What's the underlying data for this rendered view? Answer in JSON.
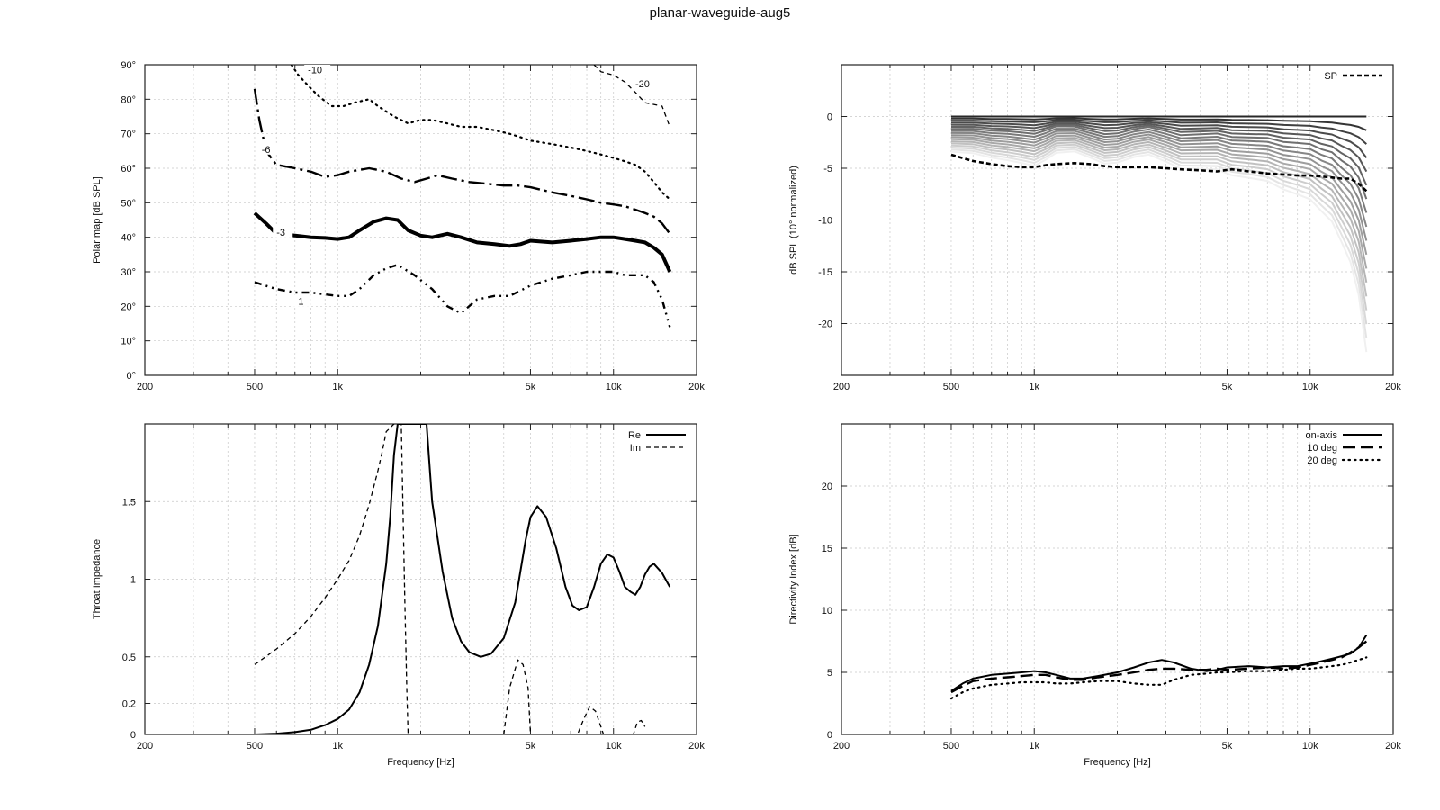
{
  "figure_title": "planar-waveguide-aug5",
  "freq_ticks": [
    {
      "v": 200,
      "label": "200"
    },
    {
      "v": 500,
      "label": "500"
    },
    {
      "v": 1000,
      "label": "1k"
    },
    {
      "v": 5000,
      "label": "5k"
    },
    {
      "v": 10000,
      "label": "10k"
    },
    {
      "v": 20000,
      "label": "20k"
    }
  ],
  "chart_data": [
    {
      "id": "polar",
      "type": "line",
      "subtype": "contour",
      "xscale": "log",
      "xlim": [
        200,
        20000
      ],
      "ylim": [
        0,
        90
      ],
      "xlabel": "",
      "ylabel": "Polar map [dB SPL]",
      "grid": true,
      "yticks": [
        {
          "v": 0,
          "label": "0°"
        },
        {
          "v": 10,
          "label": "10°"
        },
        {
          "v": 20,
          "label": "20°"
        },
        {
          "v": 30,
          "label": "30°"
        },
        {
          "v": 40,
          "label": "40°"
        },
        {
          "v": 50,
          "label": "50°"
        },
        {
          "v": 60,
          "label": "60°"
        },
        {
          "v": 70,
          "label": "70°"
        },
        {
          "v": 80,
          "label": "80°"
        },
        {
          "v": 90,
          "label": "90°"
        }
      ],
      "series": [
        {
          "name": "-1",
          "style": "dashdot-sparse",
          "label_at": [
            700,
            21
          ],
          "x": [
            500,
            600,
            700,
            800,
            1000,
            1100,
            1200,
            1350,
            1500,
            1650,
            1900,
            2200,
            2500,
            2800,
            3200,
            3700,
            4200,
            5000,
            6000,
            7000,
            8000,
            9000,
            10000,
            11000,
            12000,
            13000,
            14000,
            15000,
            16000
          ],
          "y": [
            27,
            25,
            24,
            24,
            23,
            23,
            25,
            29,
            31,
            32,
            29,
            25,
            20,
            18,
            22,
            23,
            23,
            26,
            28,
            29,
            30,
            30,
            30,
            29,
            29,
            29,
            27,
            22,
            14
          ]
        },
        {
          "name": "-3",
          "style": "solid-bold",
          "label_at": [
            600,
            41
          ],
          "x": [
            500,
            550,
            600,
            700,
            800,
            900,
            1000,
            1100,
            1200,
            1350,
            1500,
            1650,
            1800,
            2000,
            2200,
            2500,
            2800,
            3200,
            3700,
            4200,
            4600,
            5000,
            6000,
            7000,
            8000,
            9000,
            10000,
            11000,
            12000,
            13000,
            14000,
            15000,
            16000
          ],
          "y": [
            47,
            44,
            41,
            40.5,
            40,
            39.8,
            39.5,
            40,
            42,
            44.5,
            45.5,
            45,
            42,
            40.5,
            40,
            41,
            40,
            38.5,
            38,
            37.5,
            38,
            39,
            38.5,
            39,
            39.5,
            40,
            40,
            39.5,
            39,
            38.5,
            37,
            35,
            30
          ]
        },
        {
          "name": "-6",
          "style": "dashdot-long",
          "label_at": [
            530,
            65
          ],
          "x": [
            500,
            520,
            550,
            600,
            700,
            800,
            900,
            1000,
            1100,
            1300,
            1500,
            1700,
            1900,
            2100,
            2300,
            2600,
            3000,
            3500,
            4000,
            4500,
            5000,
            6000,
            7000,
            8000,
            9000,
            10000,
            11000,
            12000,
            13000,
            14000,
            15000,
            16000
          ],
          "y": [
            83,
            74,
            65,
            61,
            60,
            59,
            57.5,
            58,
            59,
            60,
            59,
            57,
            56,
            57,
            58,
            57,
            56,
            55.5,
            55,
            55,
            54.5,
            53,
            52,
            51,
            50,
            49.5,
            49,
            48,
            47,
            46,
            44,
            41
          ]
        },
        {
          "name": "-10",
          "style": "dotted",
          "label_at": [
            780,
            88
          ],
          "x": [
            680,
            720,
            780,
            850,
            950,
            1050,
            1150,
            1300,
            1400,
            1600,
            1800,
            2000,
            2200,
            2500,
            2800,
            3200,
            3700,
            4200,
            4600,
            5000,
            6000,
            7000,
            8000,
            9000,
            10000,
            11000,
            12000,
            13000,
            14000,
            15000,
            16000
          ],
          "y": [
            90,
            87,
            84,
            81,
            78,
            78,
            79,
            80,
            78,
            75,
            73,
            74,
            74,
            73,
            72,
            72,
            71,
            70,
            69,
            68,
            67,
            66,
            65,
            64,
            63,
            62,
            61,
            59,
            56,
            53,
            51
          ]
        },
        {
          "name": "-20",
          "style": "dashed",
          "label_at": [
            12000,
            84
          ],
          "x": [
            8500,
            9000,
            10000,
            11000,
            12000,
            13000,
            14000,
            15000,
            16000
          ],
          "y": [
            90,
            88,
            87,
            85,
            82,
            79,
            78.5,
            78,
            72
          ]
        }
      ]
    },
    {
      "id": "normalized",
      "type": "line",
      "xscale": "log",
      "xlim": [
        200,
        20000
      ],
      "ylim": [
        -25,
        5
      ],
      "xlabel": "",
      "ylabel": "dB SPL (10° normalized)",
      "grid": true,
      "yticks": [
        {
          "v": 0,
          "label": "0"
        },
        {
          "v": -5,
          "label": "-5"
        },
        {
          "v": -10,
          "label": "-10"
        },
        {
          "v": -15,
          "label": "-15"
        },
        {
          "v": -20,
          "label": "-20"
        }
      ],
      "legend": {
        "entries": [
          "SP"
        ],
        "position": "top-right"
      },
      "x": [
        500,
        600,
        700,
        800,
        900,
        1000,
        1100,
        1200,
        1400,
        1600,
        1800,
        2000,
        2300,
        2600,
        3000,
        3400,
        4000,
        4600,
        5200,
        6000,
        7000,
        8000,
        9000,
        10000,
        11000,
        12000,
        13000,
        14000,
        15000,
        16000
      ],
      "series": [
        {
          "name": "SP",
          "style": "dashed-bold",
          "values": [
            -3.7,
            -4.3,
            -4.6,
            -4.8,
            -4.9,
            -4.9,
            -4.7,
            -4.6,
            -4.5,
            -4.6,
            -4.8,
            -4.9,
            -4.9,
            -4.9,
            -5.0,
            -5.1,
            -5.2,
            -5.3,
            -5.1,
            -5.3,
            -5.5,
            -5.6,
            -5.7,
            -5.7,
            -5.8,
            -5.9,
            -6.0,
            -6.0,
            -6.5,
            -7.2
          ]
        }
      ],
      "curve_family": {
        "count": 18,
        "base_slope": [
          -0.2,
          -0.22,
          -0.24,
          -0.26,
          -0.27,
          -0.28,
          -0.27,
          -0.26,
          -0.24,
          -0.24,
          -0.25,
          -0.25,
          -0.26,
          -0.27,
          -0.28,
          -0.29,
          -0.31,
          -0.33,
          -0.34,
          -0.36,
          -0.39,
          -0.42,
          -0.46,
          -0.5,
          -0.55,
          -0.62,
          -0.72,
          -0.85,
          -1.05,
          -1.35
        ],
        "ripple": [
          0,
          0.1,
          0.05,
          0.1,
          0.05,
          0,
          0.2,
          0.45,
          0.35,
          0.05,
          -0.15,
          -0.1,
          0.25,
          0.45,
          0.2,
          -0.05,
          0.1,
          0.25,
          0.05,
          0.1,
          0.2,
          0.05,
          0.15,
          0.25,
          0.1,
          0.2,
          0.05,
          0.2,
          0.3,
          0.1
        ]
      }
    },
    {
      "id": "impedance",
      "type": "line",
      "xscale": "log",
      "xlim": [
        200,
        20000
      ],
      "ylim": [
        0,
        2
      ],
      "xlabel": "Frequency [Hz]",
      "ylabel": "Throat Impedance",
      "grid": true,
      "yticks": [
        {
          "v": 0,
          "label": "0"
        },
        {
          "v": 0.2,
          "label": "0.2"
        },
        {
          "v": 0.5,
          "label": "0.5"
        },
        {
          "v": 1,
          "label": "1"
        },
        {
          "v": 1.5,
          "label": "1.5"
        }
      ],
      "legend": {
        "entries": [
          "Re",
          "Im"
        ],
        "position": "top-right"
      },
      "series": [
        {
          "name": "Re",
          "style": "solid",
          "x": [
            500,
            600,
            700,
            800,
            900,
            1000,
            1100,
            1200,
            1300,
            1400,
            1500,
            1550,
            1600,
            1650,
            1700,
            1800,
            2000,
            2100,
            2200,
            2400,
            2600,
            2800,
            3000,
            3300,
            3600,
            4000,
            4400,
            4800,
            5000,
            5300,
            5700,
            6200,
            6700,
            7100,
            7500,
            8000,
            8500,
            9000,
            9500,
            10000,
            10500,
            11000,
            11500,
            12000,
            12500,
            13000,
            13500,
            14000,
            15000,
            16000
          ],
          "y": [
            0,
            0.005,
            0.015,
            0.03,
            0.06,
            0.1,
            0.16,
            0.27,
            0.45,
            0.7,
            1.1,
            1.4,
            1.8,
            2.0,
            2.0,
            2.0,
            2.0,
            2.0,
            1.5,
            1.05,
            0.75,
            0.6,
            0.53,
            0.5,
            0.52,
            0.62,
            0.85,
            1.25,
            1.4,
            1.47,
            1.4,
            1.2,
            0.95,
            0.83,
            0.8,
            0.82,
            0.95,
            1.1,
            1.16,
            1.14,
            1.05,
            0.95,
            0.92,
            0.9,
            0.95,
            1.03,
            1.08,
            1.1,
            1.04,
            0.95
          ]
        },
        {
          "name": "Im",
          "style": "dashed",
          "x": [
            500,
            600,
            700,
            800,
            900,
            1000,
            1100,
            1200,
            1300,
            1400,
            1450,
            1500,
            1600,
            1700,
            1750,
            1780,
            1800,
            1850,
            4000,
            4200,
            4500,
            4700,
            4900,
            5000,
            7400,
            7800,
            8200,
            8600,
            9000,
            9200,
            11800,
            12200,
            12600,
            13000
          ],
          "y": [
            0.45,
            0.55,
            0.65,
            0.76,
            0.88,
            1.0,
            1.12,
            1.28,
            1.48,
            1.7,
            1.82,
            1.95,
            2.0,
            2.0,
            0.9,
            0.3,
            0.0,
            null,
            0.0,
            0.3,
            0.48,
            0.45,
            0.3,
            0.0,
            0.0,
            0.1,
            0.18,
            0.15,
            0.05,
            0.0,
            0.0,
            0.08,
            0.09,
            0.05
          ]
        }
      ]
    },
    {
      "id": "directivity",
      "type": "line",
      "xscale": "log",
      "xlim": [
        200,
        20000
      ],
      "ylim": [
        0,
        25
      ],
      "xlabel": "Frequency [Hz]",
      "ylabel": "Directivity Index [dB]",
      "grid": true,
      "yticks": [
        {
          "v": 0,
          "label": "0"
        },
        {
          "v": 5,
          "label": "5"
        },
        {
          "v": 10,
          "label": "10"
        },
        {
          "v": 15,
          "label": "15"
        },
        {
          "v": 20,
          "label": "20"
        }
      ],
      "legend": {
        "entries": [
          "on-axis",
          "10 deg",
          "20 deg"
        ],
        "position": "top-right"
      },
      "series": [
        {
          "name": "on-axis",
          "style": "solid",
          "x": [
            500,
            550,
            600,
            700,
            800,
            900,
            1000,
            1100,
            1200,
            1350,
            1500,
            1700,
            2000,
            2300,
            2600,
            2900,
            3200,
            3700,
            4200,
            4600,
            5000,
            6000,
            7000,
            8000,
            9000,
            10000,
            11000,
            12000,
            13000,
            14000,
            15000,
            16000
          ],
          "y": [
            3.5,
            4.1,
            4.5,
            4.8,
            4.9,
            5.0,
            5.1,
            5.0,
            4.8,
            4.5,
            4.5,
            4.7,
            5.0,
            5.4,
            5.8,
            6.0,
            5.8,
            5.3,
            5.1,
            5.2,
            5.4,
            5.5,
            5.4,
            5.5,
            5.5,
            5.7,
            5.9,
            6.1,
            6.3,
            6.5,
            7.0,
            8.0
          ]
        },
        {
          "name": "10 deg",
          "style": "dashed-long",
          "x": [
            500,
            550,
            600,
            700,
            800,
            900,
            1000,
            1100,
            1200,
            1350,
            1500,
            1700,
            2000,
            2300,
            2600,
            2900,
            3200,
            3700,
            4200,
            4600,
            5000,
            6000,
            7000,
            8000,
            9000,
            10000,
            11000,
            12000,
            13000,
            14000,
            15000,
            16000
          ],
          "y": [
            3.4,
            3.9,
            4.3,
            4.5,
            4.6,
            4.7,
            4.8,
            4.8,
            4.6,
            4.4,
            4.4,
            4.6,
            4.8,
            5.0,
            5.2,
            5.3,
            5.3,
            5.2,
            5.2,
            5.3,
            5.2,
            5.3,
            5.4,
            5.3,
            5.4,
            5.6,
            5.8,
            6.0,
            6.2,
            6.6,
            7.0,
            7.5
          ]
        },
        {
          "name": "20 deg",
          "style": "dotted",
          "x": [
            500,
            550,
            600,
            700,
            800,
            900,
            1000,
            1100,
            1200,
            1350,
            1500,
            1700,
            2000,
            2300,
            2600,
            2900,
            3200,
            3700,
            4200,
            4600,
            5000,
            6000,
            7000,
            8000,
            9000,
            10000,
            11000,
            12000,
            13000,
            14000,
            15000,
            16000
          ],
          "y": [
            2.9,
            3.4,
            3.7,
            4.0,
            4.1,
            4.2,
            4.2,
            4.2,
            4.1,
            4.1,
            4.2,
            4.3,
            4.3,
            4.1,
            4.0,
            4.0,
            4.4,
            4.8,
            4.9,
            5.0,
            5.0,
            5.1,
            5.1,
            5.2,
            5.3,
            5.3,
            5.4,
            5.5,
            5.6,
            5.8,
            6.0,
            6.2
          ]
        }
      ]
    }
  ]
}
